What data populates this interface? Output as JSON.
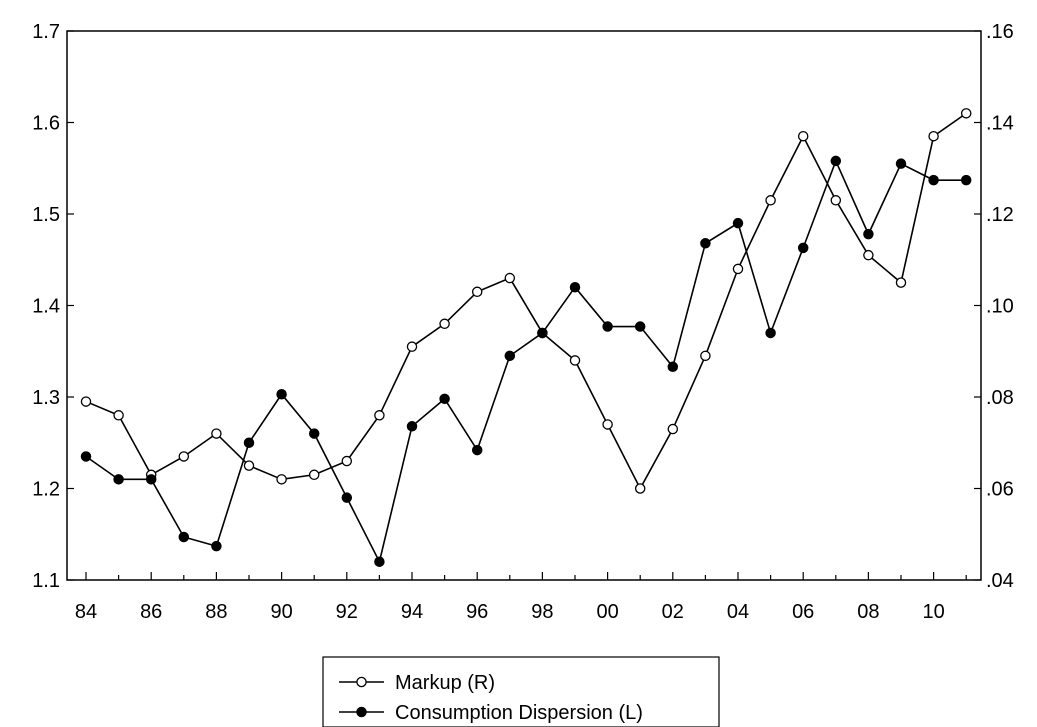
{
  "chart_data": {
    "type": "line",
    "x": [
      "84",
      "85",
      "86",
      "87",
      "88",
      "89",
      "90",
      "91",
      "92",
      "93",
      "94",
      "95",
      "96",
      "97",
      "98",
      "99",
      "00",
      "01",
      "02",
      "03",
      "04",
      "05",
      "06",
      "07",
      "08",
      "09",
      "10",
      "11"
    ],
    "x_tick_labels": [
      "84",
      "86",
      "88",
      "90",
      "92",
      "94",
      "96",
      "98",
      "00",
      "02",
      "04",
      "06",
      "08",
      "10"
    ],
    "left_axis": {
      "ylim": [
        1.1,
        1.7
      ],
      "tick_labels": [
        "1.1",
        "1.2",
        "1.3",
        "1.4",
        "1.5",
        "1.6",
        "1.7"
      ]
    },
    "right_axis": {
      "ylim": [
        0.04,
        0.16
      ],
      "tick_labels": [
        ".04",
        ".06",
        ".08",
        ".10",
        ".12",
        ".14",
        ".16"
      ]
    },
    "grid": false,
    "legend_position": "bottom-center",
    "series": [
      {
        "name": "Markup (R)",
        "axis": "right",
        "marker": "hollow-circle",
        "color": "#000000",
        "values": [
          0.079,
          0.076,
          0.063,
          0.067,
          0.072,
          0.065,
          0.062,
          0.063,
          0.066,
          0.076,
          0.091,
          0.096,
          0.103,
          0.106,
          0.094,
          0.088,
          0.074,
          0.06,
          0.073,
          0.089,
          0.108,
          0.123,
          0.137,
          0.123,
          0.111,
          0.105,
          0.137,
          0.142
        ]
      },
      {
        "name": "Consumption Dispersion (L)",
        "axis": "left",
        "marker": "filled-circle",
        "color": "#000000",
        "values": [
          1.235,
          1.21,
          1.21,
          1.147,
          1.137,
          1.25,
          1.303,
          1.26,
          1.19,
          1.12,
          1.268,
          1.298,
          1.242,
          1.345,
          1.37,
          1.42,
          1.377,
          1.377,
          1.333,
          1.468,
          1.49,
          1.37,
          1.463,
          1.558,
          1.478,
          1.555,
          1.537,
          1.537
        ]
      }
    ]
  }
}
